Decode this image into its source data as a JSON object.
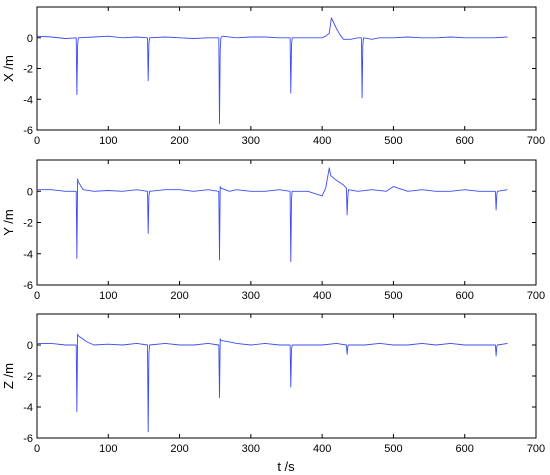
{
  "figure": {
    "xlabel": "t /s"
  },
  "colors": {
    "series": "#3b4cf4",
    "axis": "#000000"
  },
  "chart_data": [
    {
      "type": "line",
      "ylabel": "X /m",
      "xlim": [
        0,
        700
      ],
      "ylim": [
        -6,
        2
      ],
      "xticks": [
        0,
        100,
        200,
        300,
        400,
        500,
        600,
        700
      ],
      "yticks": [
        -6,
        -4,
        -2,
        0
      ],
      "grid": false,
      "series": [
        {
          "x": [
            0,
            20,
            40,
            55,
            56,
            57,
            58,
            80,
            100,
            120,
            140,
            155,
            156,
            157,
            158,
            180,
            200,
            220,
            240,
            255,
            256,
            257,
            258,
            260,
            280,
            300,
            320,
            340,
            355,
            356,
            357,
            358,
            380,
            400,
            405,
            410,
            413,
            420,
            425,
            430,
            440,
            450,
            455,
            456,
            457,
            458,
            470,
            480,
            500,
            520,
            540,
            560,
            580,
            600,
            620,
            640,
            660
          ],
          "y": [
            0.1,
            0.05,
            -0.05,
            0.0,
            -3.7,
            -0.5,
            0.0,
            0.05,
            0.1,
            0.0,
            0.05,
            0.0,
            -2.8,
            -0.4,
            0.0,
            0.05,
            0.0,
            -0.05,
            0.0,
            0.0,
            -5.6,
            -0.8,
            0.0,
            0.1,
            0.0,
            0.05,
            0.05,
            0.0,
            0.0,
            -3.6,
            -0.5,
            0.0,
            0.0,
            0.0,
            0.1,
            0.3,
            1.3,
            0.6,
            0.2,
            -0.1,
            -0.1,
            0.0,
            0.0,
            -3.9,
            -0.5,
            0.0,
            -0.1,
            0.0,
            0.0,
            0.05,
            0.0,
            0.0,
            0.05,
            0.0,
            0.0,
            0.0,
            0.05
          ]
        }
      ]
    },
    {
      "type": "line",
      "ylabel": "Y /m",
      "xlim": [
        0,
        700
      ],
      "ylim": [
        -6,
        2
      ],
      "xticks": [
        0,
        100,
        200,
        300,
        400,
        500,
        600,
        700
      ],
      "yticks": [
        -6,
        -4,
        -2,
        0
      ],
      "grid": false,
      "series": [
        {
          "x": [
            0,
            20,
            40,
            55,
            56,
            57,
            58,
            65,
            80,
            100,
            120,
            140,
            155,
            156,
            157,
            158,
            180,
            200,
            220,
            240,
            255,
            256,
            257,
            258,
            270,
            280,
            300,
            320,
            340,
            355,
            356,
            357,
            358,
            380,
            400,
            405,
            410,
            412,
            420,
            430,
            434,
            435,
            436,
            437,
            450,
            470,
            490,
            500,
            520,
            540,
            560,
            580,
            600,
            620,
            640,
            643,
            644,
            645,
            646,
            660
          ],
          "y": [
            0.1,
            0.1,
            0.0,
            0.0,
            -4.3,
            0.8,
            0.6,
            0.1,
            0.0,
            0.05,
            0.0,
            0.1,
            0.0,
            -2.7,
            -0.3,
            0.0,
            0.1,
            0.1,
            0.0,
            0.1,
            0.0,
            -4.4,
            0.3,
            0.2,
            0.0,
            0.1,
            0.0,
            0.0,
            0.1,
            0.0,
            -4.5,
            -0.5,
            0.0,
            0.0,
            -0.3,
            0.2,
            1.5,
            1.0,
            0.7,
            0.4,
            0.2,
            -1.5,
            -0.4,
            0.1,
            0.0,
            0.1,
            0.0,
            0.3,
            0.0,
            0.1,
            0.0,
            0.0,
            0.1,
            0.0,
            0.0,
            0.0,
            -1.2,
            -0.2,
            0.0,
            0.1
          ]
        }
      ]
    },
    {
      "type": "line",
      "ylabel": "Z /m",
      "xlim": [
        0,
        700
      ],
      "ylim": [
        -6,
        2
      ],
      "xticks": [
        0,
        100,
        200,
        300,
        400,
        500,
        600,
        700
      ],
      "yticks": [
        -6,
        -4,
        -2,
        0
      ],
      "grid": false,
      "series": [
        {
          "x": [
            0,
            20,
            40,
            55,
            56,
            57,
            58,
            70,
            80,
            100,
            120,
            140,
            155,
            156,
            157,
            158,
            180,
            200,
            220,
            240,
            255,
            256,
            257,
            258,
            270,
            280,
            300,
            320,
            340,
            355,
            356,
            357,
            358,
            380,
            400,
            420,
            434,
            435,
            436,
            437,
            460,
            480,
            500,
            520,
            540,
            560,
            580,
            600,
            620,
            640,
            643,
            644,
            645,
            646,
            660
          ],
          "y": [
            0.1,
            0.1,
            0.0,
            0.0,
            -4.3,
            0.7,
            0.6,
            0.2,
            0.0,
            0.05,
            0.0,
            0.1,
            0.0,
            -5.6,
            -0.6,
            0.0,
            0.1,
            0.0,
            0.0,
            0.1,
            0.0,
            -3.4,
            0.4,
            0.3,
            0.2,
            0.1,
            0.0,
            0.1,
            0.0,
            0.0,
            -2.7,
            -0.3,
            0.0,
            0.0,
            0.0,
            0.1,
            0.0,
            -0.6,
            -0.1,
            0.0,
            0.0,
            0.1,
            0.0,
            0.0,
            0.1,
            0.0,
            0.1,
            0.0,
            0.0,
            0.0,
            0.0,
            -0.7,
            -0.1,
            0.0,
            0.1
          ]
        }
      ]
    }
  ]
}
